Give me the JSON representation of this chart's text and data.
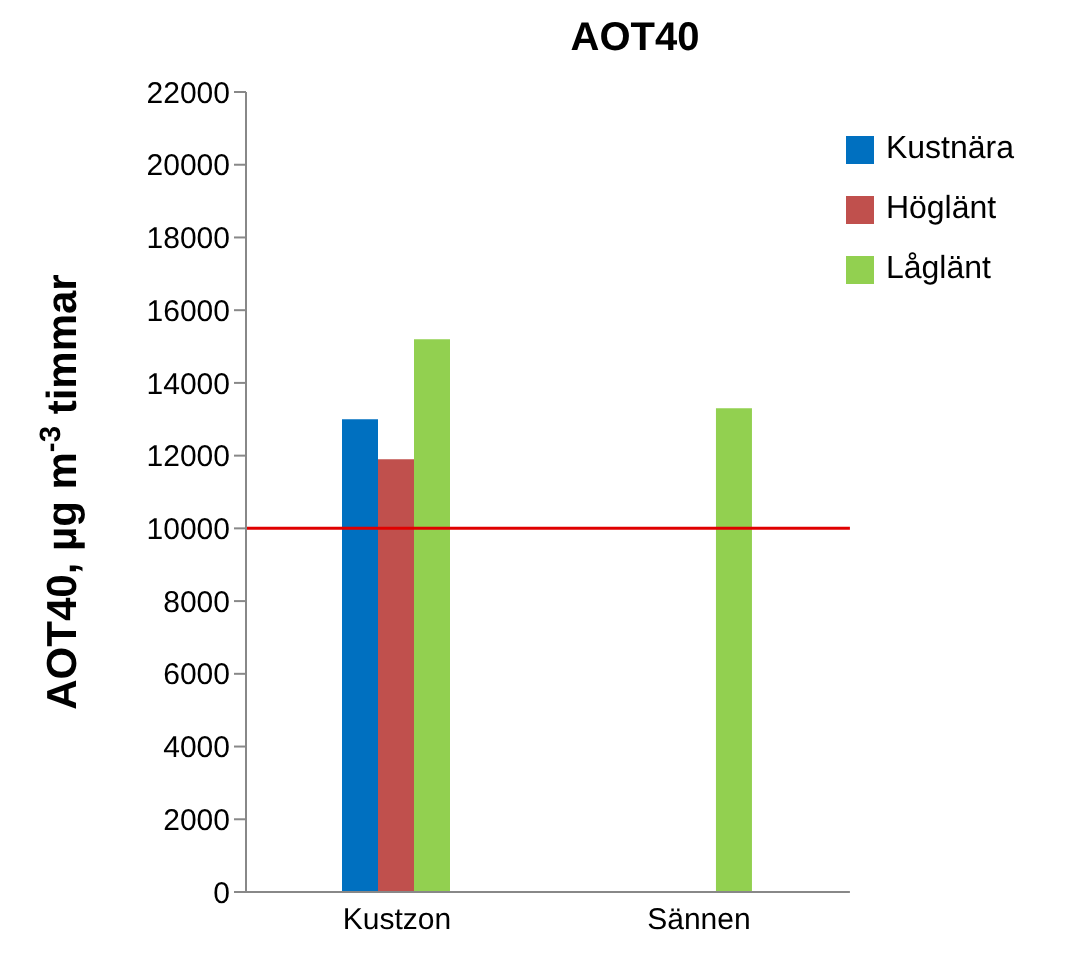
{
  "chart_data": {
    "type": "bar",
    "title": "AOT40",
    "ylabel": "AOT40, µg m$^{-3}$ timmar",
    "categories": [
      "Kustzon",
      "Sännen"
    ],
    "series": [
      {
        "name": "Kustnära",
        "color": "#0070c0",
        "values": [
          13000,
          null
        ]
      },
      {
        "name": "Höglänt",
        "color": "#c0504d",
        "values": [
          11900,
          null
        ]
      },
      {
        "name": "Låglänt",
        "color": "#92d050",
        "values": [
          15200,
          13300
        ]
      }
    ],
    "ylim": [
      0,
      22000
    ],
    "yticks": [
      0,
      2000,
      4000,
      6000,
      8000,
      10000,
      12000,
      14000,
      16000,
      18000,
      20000,
      22000
    ],
    "ref_lines": [
      {
        "axis": "y",
        "value": 10000,
        "color": "#e00000"
      }
    ],
    "grid": false,
    "legend": "top right"
  }
}
